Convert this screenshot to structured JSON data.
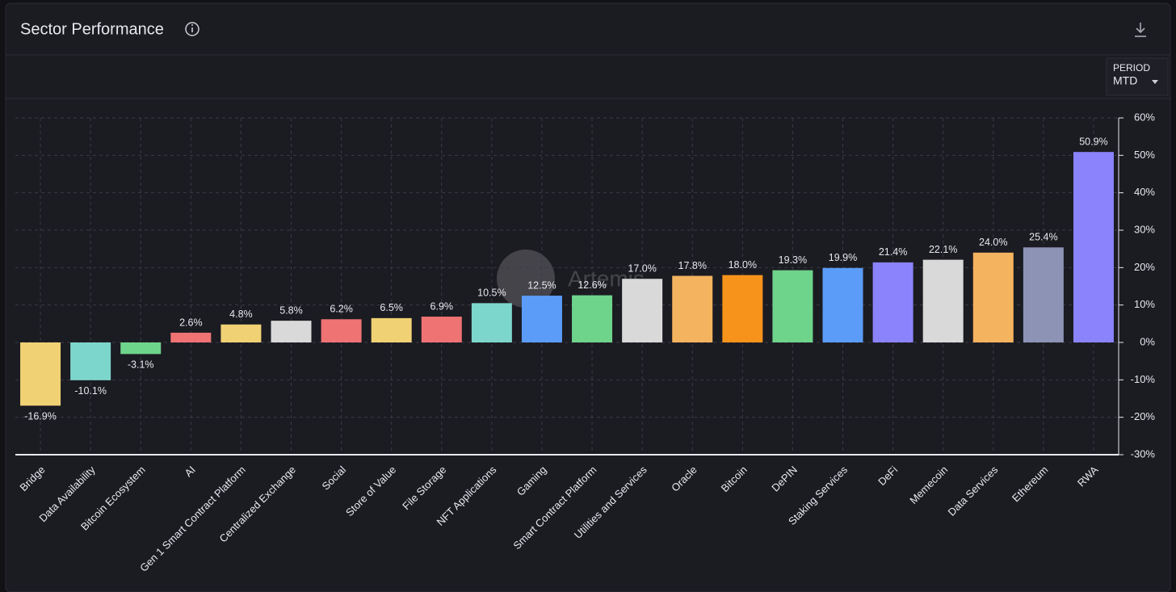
{
  "chart_data": {
    "type": "bar",
    "title": "Sector Performance",
    "period_label": "PERIOD",
    "period_value": "MTD",
    "watermark": "Artemis",
    "categories": [
      "Bridge",
      "Data Availability",
      "Bitcoin Ecosystem",
      "AI",
      "Gen 1 Smart Contract Platform",
      "Centralized Exchange",
      "Social",
      "Store of Value",
      "File Storage",
      "NFT Applications",
      "Gaming",
      "Smart Contract Platform",
      "Utilities and Services",
      "Oracle",
      "Bitcoin",
      "DePIN",
      "Staking Services",
      "DeFi",
      "Memecoin",
      "Data Services",
      "Ethereum",
      "RWA"
    ],
    "values": [
      -16.9,
      -10.1,
      -3.1,
      2.6,
      4.8,
      5.8,
      6.2,
      6.5,
      6.9,
      10.5,
      12.5,
      12.6,
      17.0,
      17.8,
      18.0,
      19.3,
      19.9,
      21.4,
      22.1,
      24.0,
      25.4,
      50.9
    ],
    "value_labels": [
      "-16.9%",
      "-10.1%",
      "-3.1%",
      "2.6%",
      "4.8%",
      "5.8%",
      "6.2%",
      "6.5%",
      "6.9%",
      "10.5%",
      "12.5%",
      "12.6%",
      "17.0%",
      "17.8%",
      "18.0%",
      "19.3%",
      "19.9%",
      "21.4%",
      "22.1%",
      "24.0%",
      "25.4%",
      "50.9%"
    ],
    "colors": [
      "#f0d174",
      "#7dd6cc",
      "#6fd48b",
      "#ef7373",
      "#f0d174",
      "#d9d9d9",
      "#ef7373",
      "#f0d174",
      "#ef7373",
      "#7dd6cc",
      "#5b9cf8",
      "#6fd48b",
      "#d9d9d9",
      "#f4b35e",
      "#f7931a",
      "#6fd48b",
      "#5b9cf8",
      "#8b83fb",
      "#d9d9d9",
      "#f4b35e",
      "#8d93b5",
      "#8b83fb"
    ],
    "ylim": [
      -30,
      60
    ],
    "yticks": [
      {
        "value": 60,
        "label": "60%"
      },
      {
        "value": 50,
        "label": "50%"
      },
      {
        "value": 40,
        "label": "40%"
      },
      {
        "value": 30,
        "label": "30%"
      },
      {
        "value": 20,
        "label": "20%"
      },
      {
        "value": 10,
        "label": "10%"
      },
      {
        "value": 0,
        "label": "0%"
      },
      {
        "value": -10,
        "label": "-10%"
      },
      {
        "value": -20,
        "label": "-20%"
      },
      {
        "value": -30,
        "label": "-30%"
      }
    ],
    "grid": true
  }
}
